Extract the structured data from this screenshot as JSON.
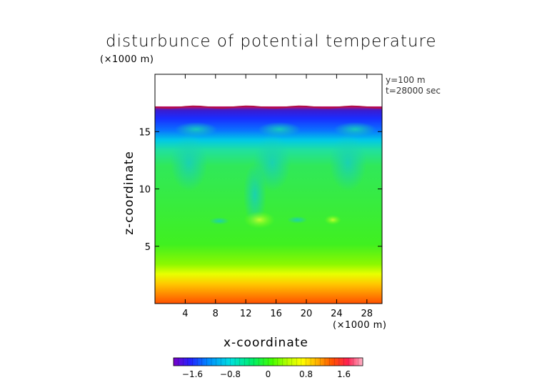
{
  "chart_data": {
    "type": "heatmap",
    "title": "disturbunce of potential temperature",
    "xlabel": "x-coordinate",
    "ylabel": "z-coordinate",
    "x_unit": "(×1000 m)",
    "z_unit": "(×1000 m)",
    "info": [
      "y=100 m",
      "t=28000 sec"
    ],
    "xlim": [
      0,
      30
    ],
    "ylim": [
      0,
      20
    ],
    "x_ticks": [
      4,
      8,
      12,
      16,
      20,
      24,
      28
    ],
    "y_ticks": [
      5,
      10,
      15
    ],
    "colorbar": {
      "range": [
        -2.0,
        2.0
      ],
      "tick_values": [
        -1.6,
        -0.8,
        0,
        0.8,
        1.6
      ],
      "tick_labels": [
        "−1.6",
        "−0.8",
        "0",
        "0.8",
        "1.6"
      ],
      "colors": [
        "#7a00c8",
        "#2222ff",
        "#0088ff",
        "#00e0e0",
        "#00ee66",
        "#44ff00",
        "#b4ff00",
        "#ffff00",
        "#ffb000",
        "#ff5000",
        "#ff2050",
        "#ffb4c8"
      ]
    },
    "field_summary": {
      "domain_top_z": 17.2,
      "value_near_top": -1.7,
      "value_mid": 0.05,
      "value_near_surface": 1.4,
      "plumes_x": [
        3,
        14,
        24
      ],
      "blank_above_top": true
    }
  }
}
